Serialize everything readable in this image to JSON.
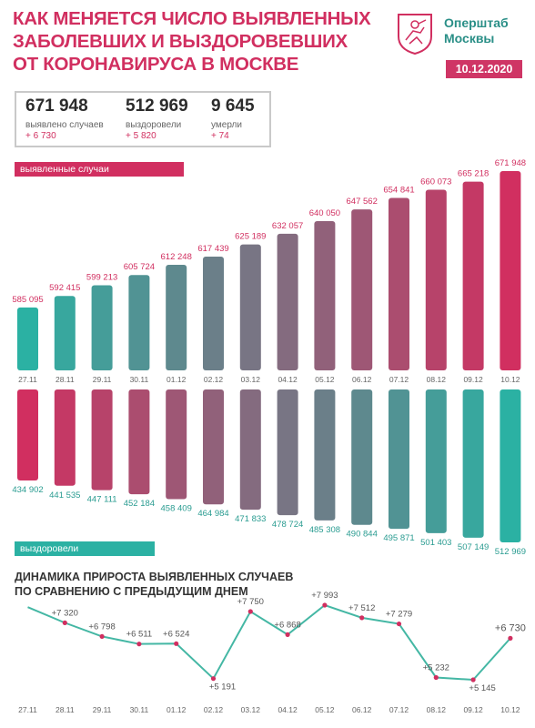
{
  "header": {
    "title_lines": [
      "КАК МЕНЯЕТСЯ ЧИСЛО ВЫЯВЛЕННЫХ",
      "ЗАБОЛЕВШИХ И ВЫЗДОРОВЕВШИХ",
      "ОТ КОРОНАВИРУСА В МОСКВЕ"
    ],
    "brand_lines": [
      "Оперштаб",
      "Москвы"
    ],
    "date": "10.12.2020"
  },
  "summary": [
    {
      "value": "671 948",
      "label": "выявлено случаев",
      "delta": "+ 6 730"
    },
    {
      "value": "512 969",
      "label": "выздоровели",
      "delta": "+ 5 820"
    },
    {
      "value": "9 645",
      "label": "умерли",
      "delta": "+ 74"
    }
  ],
  "colors": {
    "accent": "#d12f60",
    "teal": "#2bb1a3",
    "brand": "#2a8f87",
    "line": "#44b7a4"
  },
  "chart_data": [
    {
      "type": "bar",
      "title": "выявленные случаи",
      "categories": [
        "27.11",
        "28.11",
        "29.11",
        "30.11",
        "01.12",
        "02.12",
        "03.12",
        "04.12",
        "05.12",
        "06.12",
        "07.12",
        "08.12",
        "09.12",
        "10.12"
      ],
      "values": [
        585095,
        592415,
        599213,
        605724,
        612248,
        617439,
        625189,
        632057,
        640050,
        647562,
        654841,
        660073,
        665218,
        671948
      ],
      "value_labels": [
        "585 095",
        "592 415",
        "599 213",
        "605 724",
        "612 248",
        "617 439",
        "625 189",
        "632 057",
        "640 050",
        "647 562",
        "654 841",
        "660 073",
        "665 218",
        "671 948"
      ],
      "gradient": "teal-to-crimson"
    },
    {
      "type": "bar",
      "title": "выздоровели",
      "categories": [
        "27.11",
        "28.11",
        "29.11",
        "30.11",
        "01.12",
        "02.12",
        "03.12",
        "04.12",
        "05.12",
        "06.12",
        "07.12",
        "08.12",
        "09.12",
        "10.12"
      ],
      "values": [
        434902,
        441535,
        447111,
        452184,
        458409,
        464984,
        471833,
        478724,
        485308,
        490844,
        495871,
        501403,
        507149,
        512969
      ],
      "value_labels": [
        "434 902",
        "441 535",
        "447 111",
        "452 184",
        "458 409",
        "464 984",
        "471 833",
        "478 724",
        "485 308",
        "490 844",
        "495 871",
        "501 403",
        "507 149",
        "512 969"
      ],
      "gradient": "crimson-to-teal",
      "orientation": "downward"
    },
    {
      "type": "line",
      "title": "ДИНАМИКА ПРИРОСТА ВЫЯВЛЕННЫХ СЛУЧАЕВ ПО СРАВНЕНИЮ С ПРЕДЫДУЩИМ ДНЕМ",
      "title_lines": [
        "ДИНАМИКА ПРИРОСТА ВЫЯВЛЕННЫХ СЛУЧАЕВ",
        "ПО СРАВНЕНИЮ С ПРЕДЫДУЩИМ ДНЕМ"
      ],
      "categories": [
        "27.11",
        "28.11",
        "29.11",
        "30.11",
        "01.12",
        "02.12",
        "03.12",
        "04.12",
        "05.12",
        "06.12",
        "07.12",
        "08.12",
        "09.12",
        "10.12"
      ],
      "values": [
        7918,
        7320,
        6798,
        6511,
        6524,
        5191,
        7750,
        6868,
        7993,
        7512,
        7279,
        5232,
        5145,
        6730
      ],
      "value_labels": [
        "",
        "+7 320",
        "+6 798",
        "+6 511",
        "+6 524",
        "+5 191",
        "+7 750",
        "+6 868",
        "+7 993",
        "+7 512",
        "+7 279",
        "+5 232",
        "+5 145",
        "+6 730"
      ]
    }
  ]
}
